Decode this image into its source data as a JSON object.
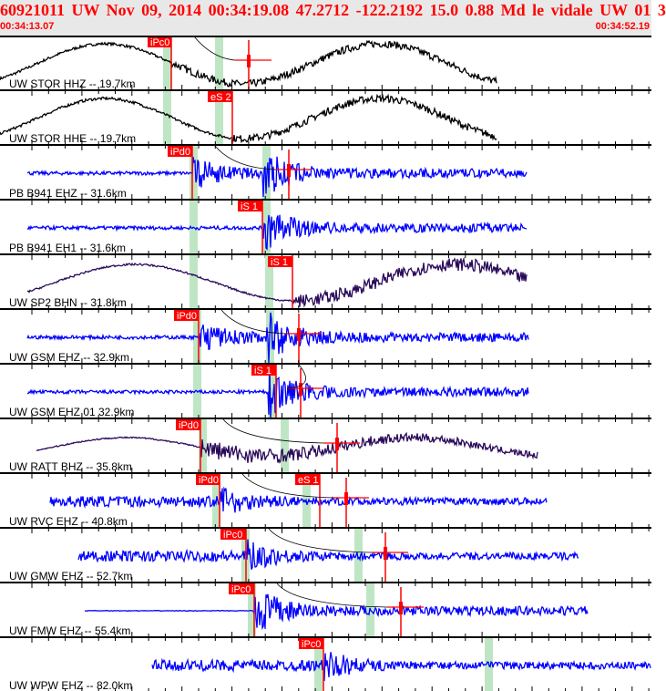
{
  "header": {
    "title": "60921011 UW Nov 09, 2014 00:34:19.08    47.2712 -122.2192 15.0 0.88 Md le vidale UW 01    3",
    "start_time": "00:34:13.07",
    "end_time": "00:34:52.19"
  },
  "colors": {
    "text": "#ff0000",
    "pick": "#ff0000",
    "window": "#bfe6c4",
    "trace_blue": "#0000ff",
    "trace_dark": "#2a0a5a",
    "trace_black": "#000000"
  },
  "traces": [
    {
      "label": "UW STOR HHZ -- 19.7km",
      "pick": "iPc0"
    },
    {
      "label": "UW STOR HHE -- 19.7km",
      "pick": "eS 2"
    },
    {
      "label": "PB B941 EHZ -- 31.6km",
      "pick": "iPd0"
    },
    {
      "label": "PB B941 EH1 -- 31.6km",
      "pick": "iS 1"
    },
    {
      "label": "UW SP2 BHN -- 31.8km",
      "pick": "iS 1"
    },
    {
      "label": "UW GSM EHZ -- 32.9km",
      "pick": "iPd0"
    },
    {
      "label": "UW GSM EHZ 01 32.9km",
      "pick": "iS 1"
    },
    {
      "label": "UW RATT BHZ -- 35.8km",
      "pick": "iPd0"
    },
    {
      "label": "UW RVC EHZ -- 40.8km",
      "pick": "iPd0",
      "pick2": "eS 1"
    },
    {
      "label": "UW GMW EHZ -- 52.7km",
      "pick": "iPc0"
    },
    {
      "label": "UW FMW EHZ -- 55.4km",
      "pick": "iPc0"
    },
    {
      "label": "UW WPW EHZ -- 82.0km",
      "pick": "iPc0"
    }
  ]
}
